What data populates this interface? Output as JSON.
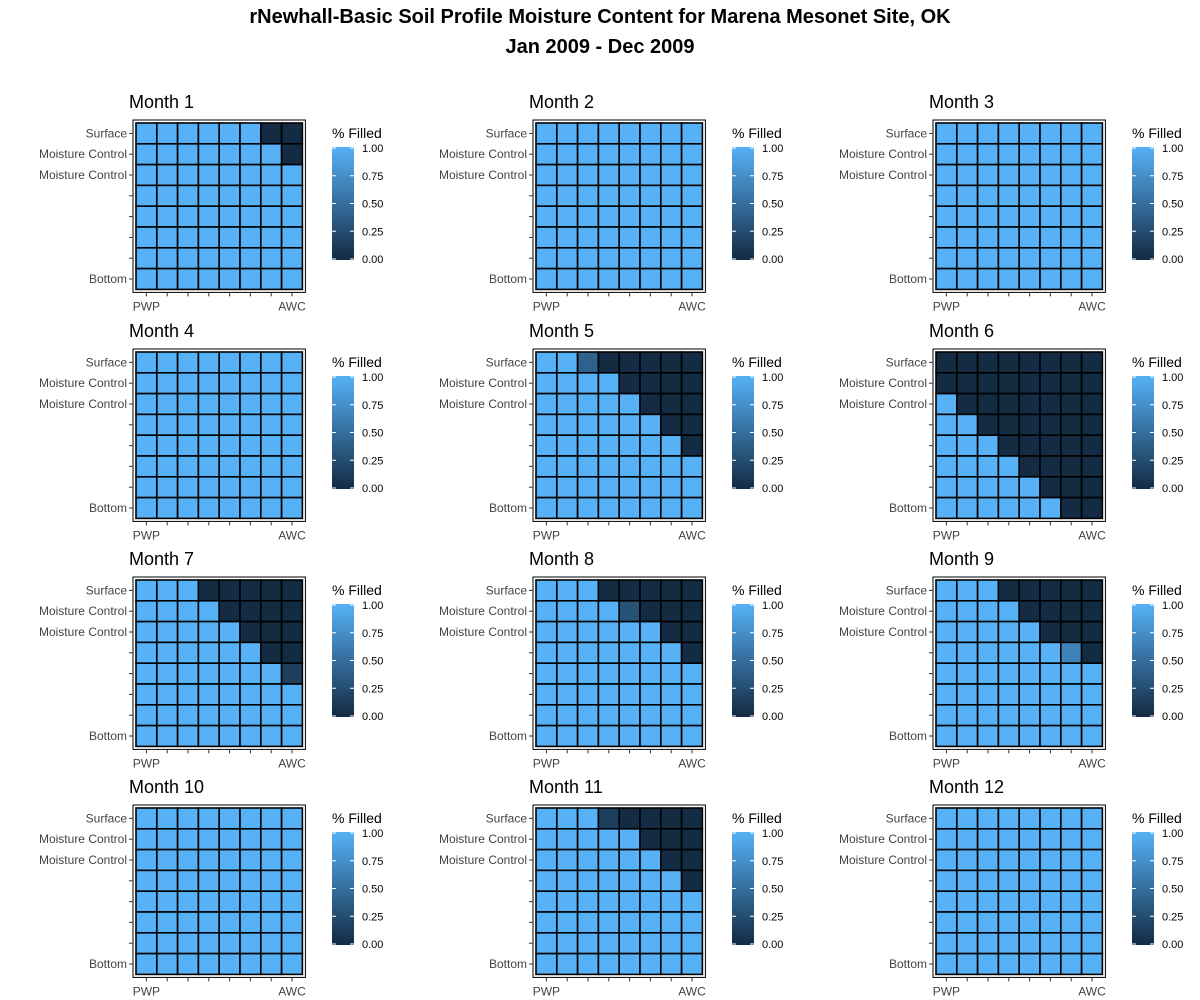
{
  "chart_data": {
    "type": "heatmap",
    "title": "rNewhall-Basic Soil Profile Moisture Content for Marena Mesonet Site, OK",
    "subtitle": "Jan 2009 - Dec 2009",
    "y_tick_labels": [
      "Surface",
      "Moisture Control",
      "Moisture Control",
      "",
      "",
      "",
      "",
      "Bottom"
    ],
    "x_tick_labels": [
      "PWP",
      "",
      "",
      "",
      "",
      "",
      "",
      "AWC"
    ],
    "legend": {
      "title": "% Filled",
      "ticks": [
        "1.00",
        "0.75",
        "0.50",
        "0.25",
        "0.00"
      ],
      "low_color": "#132B43",
      "high_color": "#56B1F7"
    },
    "panels": [
      {
        "title": "Month 1",
        "values": [
          [
            1,
            1,
            1,
            1,
            1,
            1,
            0,
            0
          ],
          [
            1,
            1,
            1,
            1,
            1,
            1,
            1,
            0
          ],
          [
            1,
            1,
            1,
            1,
            1,
            1,
            1,
            1
          ],
          [
            1,
            1,
            1,
            1,
            1,
            1,
            1,
            1
          ],
          [
            1,
            1,
            1,
            1,
            1,
            1,
            1,
            1
          ],
          [
            1,
            1,
            1,
            1,
            1,
            1,
            1,
            1
          ],
          [
            1,
            1,
            1,
            1,
            1,
            1,
            1,
            1
          ],
          [
            1,
            1,
            1,
            1,
            1,
            1,
            1,
            1
          ]
        ]
      },
      {
        "title": "Month 2",
        "values": [
          [
            1,
            1,
            1,
            1,
            1,
            1,
            1,
            1
          ],
          [
            1,
            1,
            1,
            1,
            1,
            1,
            1,
            1
          ],
          [
            1,
            1,
            1,
            1,
            1,
            1,
            1,
            1
          ],
          [
            1,
            1,
            1,
            1,
            1,
            1,
            1,
            1
          ],
          [
            1,
            1,
            1,
            1,
            1,
            1,
            1,
            1
          ],
          [
            1,
            1,
            1,
            1,
            1,
            1,
            1,
            1
          ],
          [
            1,
            1,
            1,
            1,
            1,
            1,
            1,
            1
          ],
          [
            1,
            1,
            1,
            1,
            1,
            1,
            1,
            1
          ]
        ]
      },
      {
        "title": "Month 3",
        "values": [
          [
            1,
            1,
            1,
            1,
            1,
            1,
            1,
            1
          ],
          [
            1,
            1,
            1,
            1,
            1,
            1,
            1,
            1
          ],
          [
            1,
            1,
            1,
            1,
            1,
            1,
            1,
            1
          ],
          [
            1,
            1,
            1,
            1,
            1,
            1,
            1,
            1
          ],
          [
            1,
            1,
            1,
            1,
            1,
            1,
            1,
            1
          ],
          [
            1,
            1,
            1,
            1,
            1,
            1,
            1,
            1
          ],
          [
            1,
            1,
            1,
            1,
            1,
            1,
            1,
            1
          ],
          [
            1,
            1,
            1,
            1,
            1,
            1,
            1,
            1
          ]
        ]
      },
      {
        "title": "Month 4",
        "values": [
          [
            1,
            1,
            1,
            1,
            1,
            1,
            1,
            1
          ],
          [
            1,
            1,
            1,
            1,
            1,
            1,
            1,
            1
          ],
          [
            1,
            1,
            1,
            1,
            1,
            1,
            1,
            1
          ],
          [
            1,
            1,
            1,
            1,
            1,
            1,
            1,
            1
          ],
          [
            1,
            1,
            1,
            1,
            1,
            1,
            1,
            1
          ],
          [
            1,
            1,
            1,
            1,
            1,
            1,
            1,
            1
          ],
          [
            1,
            1,
            1,
            1,
            1,
            1,
            1,
            1
          ],
          [
            1,
            1,
            1,
            1,
            1,
            1,
            1,
            1
          ]
        ]
      },
      {
        "title": "Month 5",
        "values": [
          [
            1,
            1,
            0.4,
            0,
            0,
            0,
            0,
            0
          ],
          [
            1,
            1,
            1,
            1,
            0,
            0,
            0,
            0
          ],
          [
            1,
            1,
            1,
            1,
            1,
            0,
            0,
            0
          ],
          [
            1,
            1,
            1,
            1,
            1,
            1,
            0,
            0
          ],
          [
            1,
            1,
            1,
            1,
            1,
            1,
            1,
            0
          ],
          [
            1,
            1,
            1,
            1,
            1,
            1,
            1,
            1
          ],
          [
            1,
            1,
            1,
            1,
            1,
            1,
            1,
            1
          ],
          [
            1,
            1,
            1,
            1,
            1,
            1,
            1,
            1
          ]
        ]
      },
      {
        "title": "Month 6",
        "values": [
          [
            0,
            0,
            0,
            0,
            0,
            0,
            0,
            0
          ],
          [
            0,
            0,
            0,
            0,
            0,
            0,
            0,
            0
          ],
          [
            1,
            0,
            0,
            0,
            0,
            0,
            0,
            0
          ],
          [
            1,
            1,
            0,
            0,
            0,
            0,
            0,
            0
          ],
          [
            1,
            1,
            1,
            0,
            0,
            0,
            0,
            0
          ],
          [
            1,
            1,
            1,
            1,
            0,
            0,
            0,
            0
          ],
          [
            1,
            1,
            1,
            1,
            1,
            0,
            0,
            0
          ],
          [
            1,
            1,
            1,
            1,
            1,
            1,
            0,
            0
          ]
        ]
      },
      {
        "title": "Month 7",
        "values": [
          [
            1,
            1,
            1,
            0,
            0,
            0,
            0,
            0
          ],
          [
            1,
            1,
            1,
            1,
            0,
            0,
            0,
            0
          ],
          [
            1,
            1,
            1,
            1,
            1,
            0,
            0,
            0
          ],
          [
            1,
            1,
            1,
            1,
            1,
            1,
            0,
            0
          ],
          [
            1,
            1,
            1,
            1,
            1,
            1,
            1,
            0.15
          ],
          [
            1,
            1,
            1,
            1,
            1,
            1,
            1,
            1
          ],
          [
            1,
            1,
            1,
            1,
            1,
            1,
            1,
            1
          ],
          [
            1,
            1,
            1,
            1,
            1,
            1,
            1,
            1
          ]
        ]
      },
      {
        "title": "Month 8",
        "values": [
          [
            1,
            1,
            1,
            0,
            0,
            0,
            0,
            0
          ],
          [
            1,
            1,
            1,
            1,
            0.3,
            0,
            0,
            0
          ],
          [
            1,
            1,
            1,
            1,
            1,
            1,
            0,
            0
          ],
          [
            1,
            1,
            1,
            1,
            1,
            1,
            1,
            0
          ],
          [
            1,
            1,
            1,
            1,
            1,
            1,
            1,
            1
          ],
          [
            1,
            1,
            1,
            1,
            1,
            1,
            1,
            1
          ],
          [
            1,
            1,
            1,
            1,
            1,
            1,
            1,
            1
          ],
          [
            1,
            1,
            1,
            1,
            1,
            1,
            1,
            1
          ]
        ]
      },
      {
        "title": "Month 9",
        "values": [
          [
            1,
            1,
            1,
            0,
            0,
            0,
            0,
            0
          ],
          [
            1,
            1,
            1,
            1,
            0,
            0,
            0,
            0
          ],
          [
            1,
            1,
            1,
            1,
            1,
            0,
            0,
            0
          ],
          [
            1,
            1,
            1,
            1,
            1,
            1,
            0.65,
            0
          ],
          [
            1,
            1,
            1,
            1,
            1,
            1,
            1,
            1
          ],
          [
            1,
            1,
            1,
            1,
            1,
            1,
            1,
            1
          ],
          [
            1,
            1,
            1,
            1,
            1,
            1,
            1,
            1
          ],
          [
            1,
            1,
            1,
            1,
            1,
            1,
            1,
            1
          ]
        ]
      },
      {
        "title": "Month 10",
        "values": [
          [
            1,
            1,
            1,
            1,
            1,
            1,
            1,
            1
          ],
          [
            1,
            1,
            1,
            1,
            1,
            1,
            1,
            1
          ],
          [
            1,
            1,
            1,
            1,
            1,
            1,
            1,
            1
          ],
          [
            1,
            1,
            1,
            1,
            1,
            1,
            1,
            1
          ],
          [
            1,
            1,
            1,
            1,
            1,
            1,
            1,
            1
          ],
          [
            1,
            1,
            1,
            1,
            1,
            1,
            1,
            1
          ],
          [
            1,
            1,
            1,
            1,
            1,
            1,
            1,
            1
          ],
          [
            1,
            1,
            1,
            1,
            1,
            1,
            1,
            1
          ]
        ]
      },
      {
        "title": "Month 11",
        "values": [
          [
            1,
            1,
            1,
            0.15,
            0,
            0,
            0,
            0
          ],
          [
            1,
            1,
            1,
            1,
            1,
            0,
            0,
            0
          ],
          [
            1,
            1,
            1,
            1,
            1,
            1,
            0,
            0
          ],
          [
            1,
            1,
            1,
            1,
            1,
            1,
            1,
            0
          ],
          [
            1,
            1,
            1,
            1,
            1,
            1,
            1,
            1
          ],
          [
            1,
            1,
            1,
            1,
            1,
            1,
            1,
            1
          ],
          [
            1,
            1,
            1,
            1,
            1,
            1,
            1,
            1
          ],
          [
            1,
            1,
            1,
            1,
            1,
            1,
            1,
            1
          ]
        ]
      },
      {
        "title": "Month 12",
        "values": [
          [
            1,
            1,
            1,
            1,
            1,
            1,
            1,
            1
          ],
          [
            1,
            1,
            1,
            1,
            1,
            1,
            1,
            1
          ],
          [
            1,
            1,
            1,
            1,
            1,
            1,
            1,
            1
          ],
          [
            1,
            1,
            1,
            1,
            1,
            1,
            1,
            1
          ],
          [
            1,
            1,
            1,
            1,
            1,
            1,
            1,
            1
          ],
          [
            1,
            1,
            1,
            1,
            1,
            1,
            1,
            1
          ],
          [
            1,
            1,
            1,
            1,
            1,
            1,
            1,
            1
          ],
          [
            1,
            1,
            1,
            1,
            1,
            1,
            1,
            1
          ]
        ]
      }
    ]
  }
}
